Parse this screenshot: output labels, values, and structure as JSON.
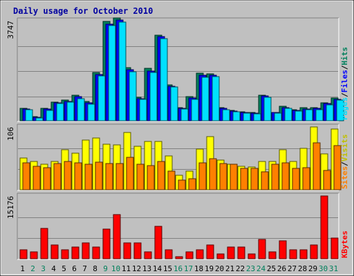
{
  "chart_data": [
    {
      "type": "bar",
      "title": "Daily usage for October 2010",
      "ymax_label": "3747",
      "ylim": [
        0,
        3747
      ],
      "categories": [
        "1",
        "2",
        "3",
        "4",
        "5",
        "6",
        "7",
        "8",
        "9",
        "10",
        "11",
        "12",
        "13",
        "14",
        "15",
        "16",
        "17",
        "18",
        "19",
        "20",
        "21",
        "22",
        "23",
        "24",
        "25",
        "26",
        "27",
        "28",
        "29",
        "30",
        "31"
      ],
      "weekend_days": [
        "2",
        "3",
        "9",
        "10",
        "16",
        "17",
        "23",
        "24",
        "30",
        "31"
      ],
      "series": [
        {
          "name": "Hits",
          "color": "#00805c",
          "values": [
            460,
            150,
            460,
            690,
            770,
            960,
            720,
            1810,
            3720,
            3840,
            1990,
            870,
            1970,
            3210,
            1340,
            490,
            900,
            1780,
            1750,
            490,
            400,
            330,
            300,
            960,
            320,
            540,
            410,
            480,
            490,
            680,
            840
          ]
        },
        {
          "name": "Files",
          "color": "#0000ff",
          "values": [
            440,
            130,
            440,
            660,
            730,
            900,
            680,
            1740,
            3630,
            3760,
            1900,
            830,
            1870,
            3150,
            1290,
            460,
            860,
            1700,
            1700,
            460,
            370,
            310,
            280,
            920,
            300,
            500,
            380,
            450,
            460,
            640,
            800
          ]
        },
        {
          "name": "Pages",
          "color": "#00e0ff",
          "values": [
            420,
            110,
            380,
            650,
            690,
            830,
            630,
            1690,
            3560,
            3700,
            1830,
            790,
            1810,
            3080,
            1260,
            440,
            800,
            1640,
            1660,
            420,
            340,
            290,
            250,
            890,
            280,
            470,
            360,
            420,
            420,
            590,
            780
          ]
        }
      ]
    },
    {
      "type": "bar",
      "ymax_label": "106",
      "ylim": [
        0,
        106
      ],
      "categories": [
        "1",
        "2",
        "3",
        "4",
        "5",
        "6",
        "7",
        "8",
        "9",
        "10",
        "11",
        "12",
        "13",
        "14",
        "15",
        "16",
        "17",
        "18",
        "19",
        "20",
        "21",
        "22",
        "23",
        "24",
        "25",
        "26",
        "27",
        "28",
        "29",
        "30",
        "31"
      ],
      "series": [
        {
          "name": "Visits",
          "color": "#ffff00",
          "values": [
            53,
            48,
            43,
            48,
            68,
            62,
            84,
            87,
            77,
            76,
            97,
            73,
            81,
            81,
            57,
            24,
            32,
            69,
            90,
            50,
            43,
            40,
            39,
            48,
            48,
            68,
            48,
            70,
            106,
            61,
            102
          ]
        },
        {
          "name": "Sites",
          "color": "#ff8000",
          "values": [
            45,
            40,
            37,
            44,
            48,
            46,
            43,
            47,
            44,
            44,
            55,
            43,
            41,
            48,
            31,
            16,
            19,
            46,
            52,
            44,
            43,
            36,
            36,
            30,
            43,
            46,
            36,
            37,
            79,
            33,
            74
          ]
        }
      ]
    },
    {
      "type": "bar",
      "ymax_label": "15176",
      "ylim": [
        0,
        15176
      ],
      "categories": [
        "1",
        "2",
        "3",
        "4",
        "5",
        "6",
        "7",
        "8",
        "9",
        "10",
        "11",
        "12",
        "13",
        "14",
        "15",
        "16",
        "17",
        "18",
        "19",
        "20",
        "21",
        "22",
        "23",
        "24",
        "25",
        "26",
        "27",
        "28",
        "29",
        "30",
        "31"
      ],
      "series": [
        {
          "name": "KBytes",
          "color": "#ff0000",
          "values": [
            2200,
            1700,
            7400,
            3300,
            2200,
            2900,
            3900,
            2900,
            7200,
            10600,
            3900,
            3900,
            1700,
            7900,
            2200,
            500,
            1700,
            2200,
            3300,
            1100,
            2900,
            2900,
            1100,
            4700,
            1700,
            4400,
            2200,
            2200,
            3300,
            15176,
            5000
          ]
        }
      ]
    }
  ]
}
